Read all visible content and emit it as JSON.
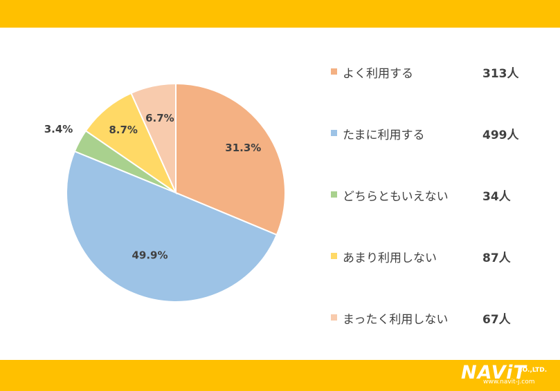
{
  "chart_data": {
    "type": "pie",
    "title": "",
    "start_angle_deg": 0,
    "direction": "clockwise",
    "slices": [
      {
        "name": "よく利用する",
        "count": "313人",
        "percent": 31.3,
        "label": "31.3%",
        "color": "#F4B183"
      },
      {
        "name": "たまに利用する",
        "count": "499人",
        "percent": 49.9,
        "label": "49.9%",
        "color": "#9DC3E6"
      },
      {
        "name": "どちらともいえない",
        "count": "34人",
        "percent": 3.4,
        "label": "3.4%",
        "color": "#A9D18E"
      },
      {
        "name": "あまり利用しない",
        "count": "87人",
        "percent": 8.7,
        "label": "8.7%",
        "color": "#FFD966"
      },
      {
        "name": "まったく利用しない",
        "count": "67人",
        "percent": 6.7,
        "label": "6.7%",
        "color": "#F8CBAD"
      }
    ],
    "legend_position": "right"
  },
  "legend": [
    {
      "label": "よく利用する",
      "count": "313人"
    },
    {
      "label": "たまに利用する",
      "count": "499人"
    },
    {
      "label": "どちらともいえない",
      "count": "34人"
    },
    {
      "label": "あまり利用しない",
      "count": "87人"
    },
    {
      "label": "まったく利用しない",
      "count": "67人"
    }
  ],
  "branding": {
    "logo_text": "NAViT",
    "logo_suffix": "CO.,LTD.",
    "website": "www.navit-j.com",
    "band_color": "#FFC000"
  }
}
